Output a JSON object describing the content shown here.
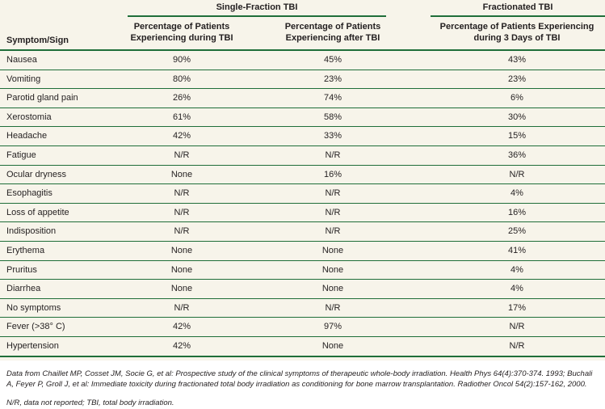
{
  "table": {
    "group_headers": [
      "Single-Fraction TBI",
      "Fractionated TBI"
    ],
    "columns": [
      "Symptom/Sign",
      [
        "Percentage of Patients",
        "Experiencing during TBI"
      ],
      [
        "Percentage of Patients",
        "Experiencing after TBI"
      ],
      [
        "Percentage of Patients Experiencing",
        "during 3 Days of TBI"
      ]
    ],
    "rows": [
      [
        "Nausea",
        "90%",
        "45%",
        "43%"
      ],
      [
        "Vomiting",
        "80%",
        "23%",
        "23%"
      ],
      [
        "Parotid gland pain",
        "26%",
        "74%",
        "6%"
      ],
      [
        "Xerostomia",
        "61%",
        "58%",
        "30%"
      ],
      [
        "Headache",
        "42%",
        "33%",
        "15%"
      ],
      [
        "Fatigue",
        "N/R",
        "N/R",
        "36%"
      ],
      [
        "Ocular dryness",
        "None",
        "16%",
        "N/R"
      ],
      [
        "Esophagitis",
        "N/R",
        "N/R",
        "4%"
      ],
      [
        "Loss of appetite",
        "N/R",
        "N/R",
        "16%"
      ],
      [
        "Indisposition",
        "N/R",
        "N/R",
        "25%"
      ],
      [
        "Erythema",
        "None",
        "None",
        "41%"
      ],
      [
        "Pruritus",
        "None",
        "None",
        "4%"
      ],
      [
        "Diarrhea",
        "None",
        "None",
        "4%"
      ],
      [
        "No symptoms",
        "N/R",
        "N/R",
        "17%"
      ],
      [
        "Fever (>38° C)",
        "42%",
        "97%",
        "N/R"
      ],
      [
        "Hypertension",
        "42%",
        "None",
        "N/R"
      ]
    ]
  },
  "footnotes": [
    "Data from Chaillet MP, Cosset JM, Socie G, et al: Prospective study of the clinical symptoms of therapeutic whole-body irradiation. Health Phys 64(4):370-374. 1993; Buchali A, Feyer P, Groll J, et al: Immediate toxicity during fractionated total body irradiation as conditioning for bone marrow transplantation. Radiother Oncol 54(2):157-162, 2000.",
    "N/R, data not reported; TBI, total body irradiation."
  ],
  "colors": {
    "rule": "#1f6e39",
    "background": "#f7f4ea"
  }
}
